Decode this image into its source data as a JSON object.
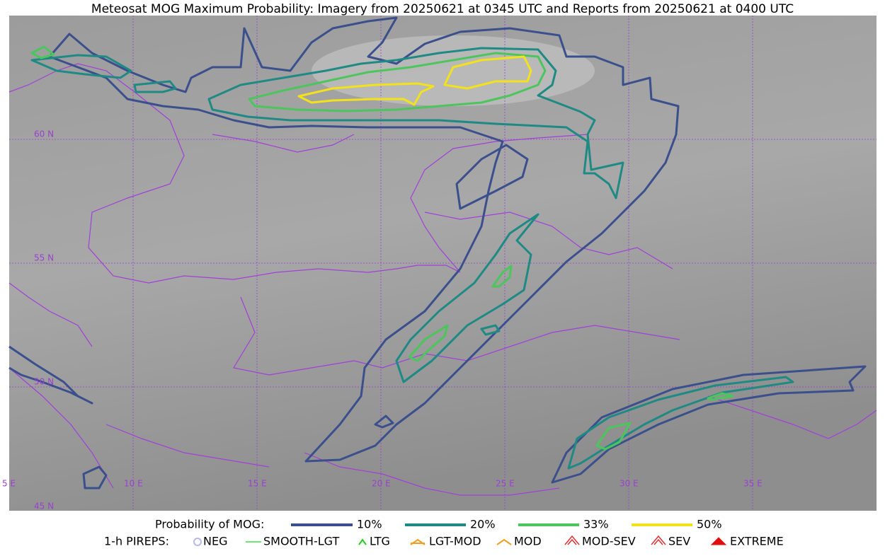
{
  "title": "Meteosat MOG Maximum Probability: Imagery from 20250621 at 0345 UTC and Reports from 20250621 at 0400 UTC",
  "grid_labels": {
    "longitudes": [
      "5 E",
      "10 E",
      "15 E",
      "20 E",
      "25 E",
      "30 E",
      "35 E"
    ],
    "latitudes": [
      "60 N",
      "55 N",
      "50 N",
      "45 N"
    ]
  },
  "legend": {
    "mog_label": "Probability of MOG:",
    "mog_levels": [
      {
        "label": "10%",
        "color": "#3b4f8c"
      },
      {
        "label": "20%",
        "color": "#1f8a84"
      },
      {
        "label": "33%",
        "color": "#4cc55c"
      },
      {
        "label": "50%",
        "color": "#f2e21b"
      }
    ],
    "pireps_label": "1-h PIREPS:",
    "pireps": [
      {
        "label": "NEG",
        "color": "#b8b8f0"
      },
      {
        "label": "SMOOTH-LGT",
        "color": "#44dd44"
      },
      {
        "label": "LTG",
        "color": "#22cc22"
      },
      {
        "label": "LGT-MOD",
        "color": "#f0a020"
      },
      {
        "label": "MOD",
        "color": "#f0a020"
      },
      {
        "label": "MOD-SEV",
        "color": "#e03030"
      },
      {
        "label": "SEV",
        "color": "#e03030"
      },
      {
        "label": "EXTREME",
        "color": "#e01010"
      }
    ]
  }
}
